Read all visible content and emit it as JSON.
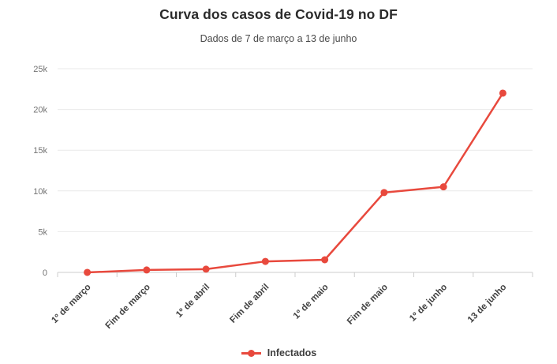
{
  "header": {
    "title": "Curva dos casos de Covid-19 no DF",
    "subtitle": "Dados de 7 de março a 13 de junho"
  },
  "legend": {
    "label": "Infectados"
  },
  "colors": {
    "line": "#e8493d",
    "grid": "#e9e9e9",
    "axis": "#cccccc",
    "title": "#2b2b2b",
    "subtitle": "#4a4a4a",
    "ytick_text": "#737373",
    "xtick_text": "#414141"
  },
  "chart_data": {
    "type": "line",
    "title": "Curva dos casos de Covid-19 no DF",
    "subtitle": "Dados de 7 de março a 13 de junho",
    "categories": [
      "1º de março",
      "Fim de março",
      "1º de abril",
      "Fim de abril",
      "1º de maio",
      "Fim de maio",
      "1º de junho",
      "13 de junho"
    ],
    "series": [
      {
        "name": "Infectados",
        "values": [
          1,
          300,
          400,
          1350,
          1550,
          9800,
          10500,
          22000
        ]
      }
    ],
    "xlabel": "",
    "ylabel": "",
    "ylim": [
      0,
      25000
    ],
    "yticks": [
      0,
      5000,
      10000,
      15000,
      20000,
      25000
    ],
    "ytick_labels": [
      "0",
      "5k",
      "10k",
      "15k",
      "20k",
      "25k"
    ],
    "grid": true,
    "legend_position": "bottom",
    "marker": "circle",
    "x_label_rotation": -45
  }
}
